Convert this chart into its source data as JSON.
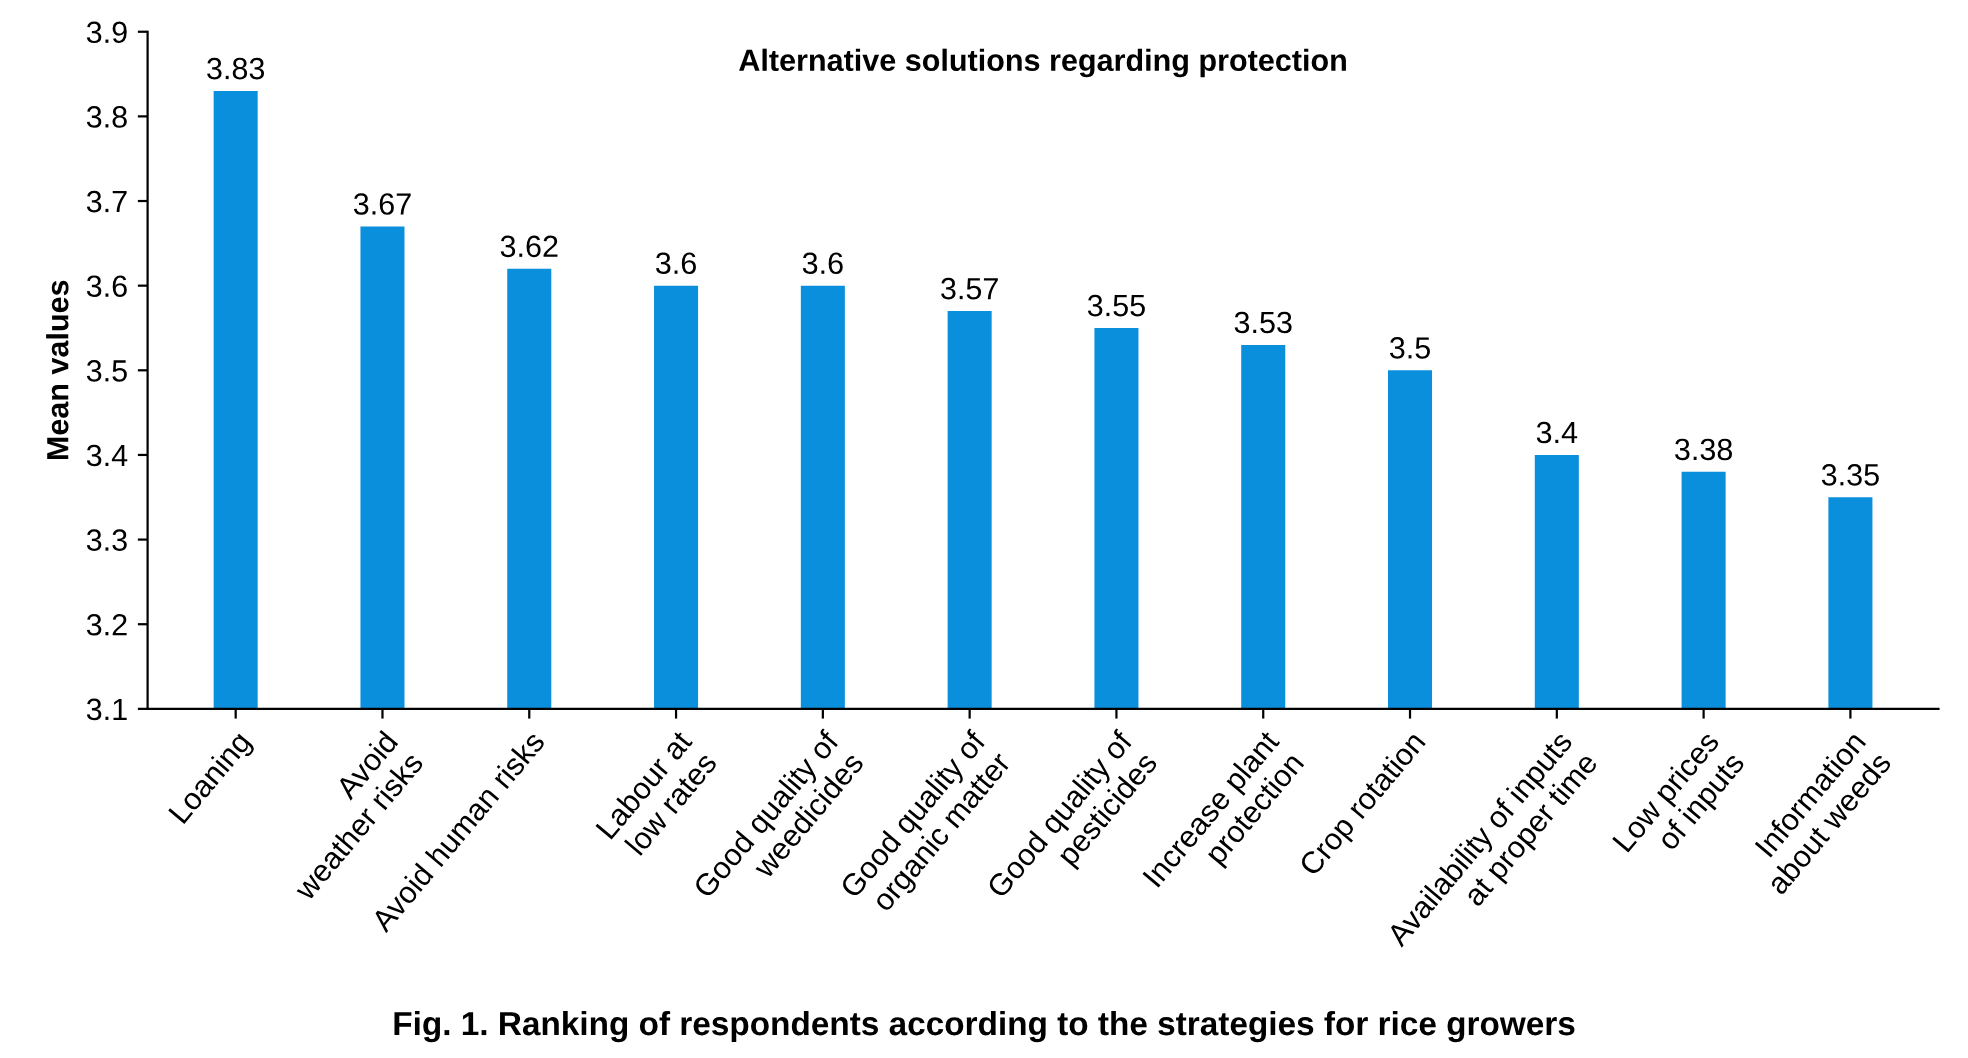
{
  "chart_data": {
    "type": "bar",
    "title": "Alternative solutions regarding protection",
    "ylabel": "Mean values",
    "categories": [
      "Loaning",
      "Avoid\nweather risks",
      "Avoid human risks",
      "Labour at\nlow rates",
      "Good quality of\nweedicides",
      "Good quality of\norganic matter",
      "Good quality of\npesticides",
      "Increase plant\nprotection",
      "Crop rotation",
      "Availability of inputs\nat proper time",
      "Low prices\nof inputs",
      "Information\nabout weeds"
    ],
    "values": [
      3.83,
      3.67,
      3.62,
      3.6,
      3.6,
      3.57,
      3.55,
      3.53,
      3.5,
      3.4,
      3.38,
      3.35
    ],
    "color": "#0a8fdc",
    "data_labels": true,
    "grid": false,
    "ylim": [
      3.1,
      3.9
    ],
    "yticks": [
      3.1,
      3.2,
      3.3,
      3.4,
      3.5,
      3.6,
      3.7,
      3.8,
      3.9
    ],
    "annotations": [
      "Fig. 1. Ranking of respondents according to the strategies for rice growers"
    ]
  }
}
